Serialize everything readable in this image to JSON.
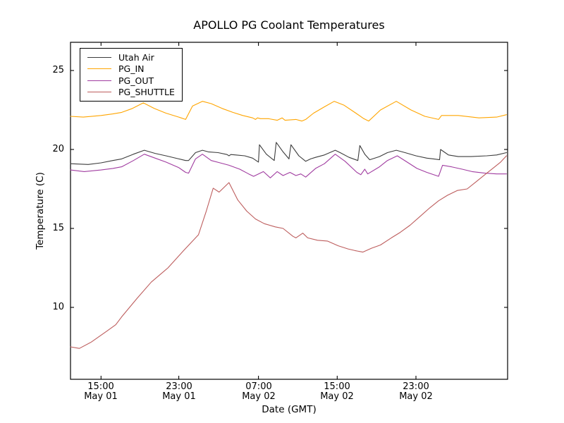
{
  "chart_data": {
    "type": "line",
    "title": "APOLLO PG Coolant Temperatures",
    "xlabel": "Date (GMT)",
    "ylabel": "Temperature (C)",
    "grid": false,
    "legend_position": "upper left",
    "x_axis_note": "hours measured from plot left edge (~May 01 12:00 GMT)",
    "xlim_hours": [
      0,
      44.4
    ],
    "ylim": [
      5.4,
      26.8
    ],
    "yticks": [
      {
        "value": 25,
        "label": "25"
      },
      {
        "value": 20,
        "label": "20"
      },
      {
        "value": 15,
        "label": "15"
      },
      {
        "value": 10,
        "label": "10"
      }
    ],
    "xticks": [
      {
        "hours": 3.1,
        "time": "15:00",
        "date": "May 01"
      },
      {
        "hours": 11.0,
        "time": "23:00",
        "date": "May 01"
      },
      {
        "hours": 19.1,
        "time": "07:00",
        "date": "May 02"
      },
      {
        "hours": 27.1,
        "time": "15:00",
        "date": "May 02"
      },
      {
        "hours": 35.1,
        "time": "23:00",
        "date": "May 02"
      }
    ],
    "series": [
      {
        "name": "Utah Air",
        "color": "#3c3c3c",
        "points": [
          [
            0,
            19.1
          ],
          [
            1.8,
            19.05
          ],
          [
            3.1,
            19.15
          ],
          [
            4.3,
            19.3
          ],
          [
            5.2,
            19.4
          ],
          [
            6.4,
            19.7
          ],
          [
            7.5,
            19.95
          ],
          [
            8.6,
            19.75
          ],
          [
            9.7,
            19.6
          ],
          [
            11.0,
            19.4
          ],
          [
            11.7,
            19.3
          ],
          [
            12.0,
            19.3
          ],
          [
            12.7,
            19.8
          ],
          [
            13.4,
            19.95
          ],
          [
            14.0,
            19.85
          ],
          [
            15.0,
            19.8
          ],
          [
            15.9,
            19.68
          ],
          [
            16.1,
            19.6
          ],
          [
            16.3,
            19.68
          ],
          [
            16.8,
            19.65
          ],
          [
            17.7,
            19.6
          ],
          [
            18.5,
            19.45
          ],
          [
            19.1,
            19.2
          ],
          [
            19.2,
            20.3
          ],
          [
            19.9,
            19.7
          ],
          [
            20.7,
            19.3
          ],
          [
            20.9,
            20.45
          ],
          [
            21.6,
            19.85
          ],
          [
            22.2,
            19.4
          ],
          [
            22.4,
            20.3
          ],
          [
            23.2,
            19.6
          ],
          [
            23.9,
            19.25
          ],
          [
            24.4,
            19.4
          ],
          [
            24.9,
            19.5
          ],
          [
            25.8,
            19.65
          ],
          [
            26.9,
            19.95
          ],
          [
            27.4,
            19.8
          ],
          [
            28.3,
            19.5
          ],
          [
            29.2,
            19.3
          ],
          [
            29.4,
            20.25
          ],
          [
            29.9,
            19.7
          ],
          [
            30.4,
            19.35
          ],
          [
            31.4,
            19.55
          ],
          [
            32.2,
            19.8
          ],
          [
            33.1,
            19.95
          ],
          [
            34.0,
            19.8
          ],
          [
            35.1,
            19.6
          ],
          [
            36.2,
            19.45
          ],
          [
            36.9,
            19.4
          ],
          [
            37.5,
            19.35
          ],
          [
            37.6,
            20.0
          ],
          [
            38.4,
            19.65
          ],
          [
            39.4,
            19.55
          ],
          [
            40.7,
            19.55
          ],
          [
            42.3,
            19.6
          ],
          [
            43.3,
            19.65
          ],
          [
            44.3,
            19.8
          ]
        ]
      },
      {
        "name": "PG_IN",
        "color": "#ffa500",
        "points": [
          [
            0,
            22.1
          ],
          [
            1.3,
            22.05
          ],
          [
            3.1,
            22.15
          ],
          [
            4.3,
            22.25
          ],
          [
            5.2,
            22.35
          ],
          [
            6.3,
            22.6
          ],
          [
            7.4,
            22.95
          ],
          [
            8.5,
            22.6
          ],
          [
            9.7,
            22.3
          ],
          [
            11.0,
            22.05
          ],
          [
            11.7,
            21.9
          ],
          [
            12.4,
            22.75
          ],
          [
            13.4,
            23.05
          ],
          [
            14.3,
            22.9
          ],
          [
            15.4,
            22.6
          ],
          [
            16.5,
            22.35
          ],
          [
            17.5,
            22.15
          ],
          [
            18.5,
            22.0
          ],
          [
            18.8,
            21.9
          ],
          [
            19.0,
            22.0
          ],
          [
            19.3,
            21.95
          ],
          [
            20.1,
            21.95
          ],
          [
            21.0,
            21.85
          ],
          [
            21.5,
            22.0
          ],
          [
            21.8,
            21.85
          ],
          [
            22.9,
            21.9
          ],
          [
            23.5,
            21.8
          ],
          [
            23.9,
            21.9
          ],
          [
            24.7,
            22.3
          ],
          [
            25.8,
            22.7
          ],
          [
            26.8,
            23.05
          ],
          [
            27.8,
            22.8
          ],
          [
            29.0,
            22.3
          ],
          [
            29.8,
            21.95
          ],
          [
            30.3,
            21.8
          ],
          [
            31.5,
            22.5
          ],
          [
            33.1,
            23.05
          ],
          [
            34.6,
            22.5
          ],
          [
            36.0,
            22.1
          ],
          [
            37.4,
            21.9
          ],
          [
            37.7,
            22.15
          ],
          [
            39.4,
            22.15
          ],
          [
            41.5,
            22.0
          ],
          [
            43.3,
            22.05
          ],
          [
            44.3,
            22.2
          ]
        ]
      },
      {
        "name": "PG_OUT",
        "color": "#a03ca0",
        "points": [
          [
            0,
            18.7
          ],
          [
            1.4,
            18.6
          ],
          [
            3.1,
            18.7
          ],
          [
            4.3,
            18.8
          ],
          [
            5.2,
            18.9
          ],
          [
            6.4,
            19.3
          ],
          [
            7.5,
            19.7
          ],
          [
            8.6,
            19.45
          ],
          [
            9.7,
            19.2
          ],
          [
            11.0,
            18.85
          ],
          [
            11.7,
            18.55
          ],
          [
            12.0,
            18.5
          ],
          [
            12.7,
            19.4
          ],
          [
            13.4,
            19.7
          ],
          [
            14.3,
            19.3
          ],
          [
            15.2,
            19.15
          ],
          [
            16.1,
            19.0
          ],
          [
            17.2,
            18.75
          ],
          [
            18.1,
            18.45
          ],
          [
            18.6,
            18.3
          ],
          [
            19.6,
            18.6
          ],
          [
            20.3,
            18.2
          ],
          [
            21.0,
            18.6
          ],
          [
            21.6,
            18.35
          ],
          [
            22.3,
            18.55
          ],
          [
            22.9,
            18.35
          ],
          [
            23.4,
            18.45
          ],
          [
            23.9,
            18.25
          ],
          [
            24.9,
            18.8
          ],
          [
            25.8,
            19.1
          ],
          [
            26.9,
            19.7
          ],
          [
            27.9,
            19.25
          ],
          [
            29.1,
            18.55
          ],
          [
            29.5,
            18.4
          ],
          [
            29.9,
            18.75
          ],
          [
            30.2,
            18.45
          ],
          [
            31.4,
            18.9
          ],
          [
            32.2,
            19.3
          ],
          [
            33.2,
            19.6
          ],
          [
            34.2,
            19.2
          ],
          [
            35.2,
            18.8
          ],
          [
            36.2,
            18.55
          ],
          [
            37.4,
            18.3
          ],
          [
            37.8,
            19.0
          ],
          [
            38.7,
            18.9
          ],
          [
            39.8,
            18.75
          ],
          [
            40.8,
            18.6
          ],
          [
            42.1,
            18.5
          ],
          [
            43.3,
            18.45
          ],
          [
            44.3,
            18.45
          ]
        ]
      },
      {
        "name": "PG_SHUTTLE",
        "color": "#bd5d5d",
        "points": [
          [
            0,
            7.5
          ],
          [
            0.9,
            7.4
          ],
          [
            2.1,
            7.8
          ],
          [
            3.7,
            8.5
          ],
          [
            4.6,
            8.9
          ],
          [
            5.2,
            9.4
          ],
          [
            6.8,
            10.6
          ],
          [
            8.2,
            11.6
          ],
          [
            9.9,
            12.5
          ],
          [
            11.5,
            13.6
          ],
          [
            13.0,
            14.6
          ],
          [
            13.8,
            16.1
          ],
          [
            14.5,
            17.55
          ],
          [
            15.1,
            17.3
          ],
          [
            16.1,
            17.9
          ],
          [
            17.0,
            16.8
          ],
          [
            17.9,
            16.1
          ],
          [
            18.8,
            15.6
          ],
          [
            19.7,
            15.3
          ],
          [
            20.8,
            15.1
          ],
          [
            21.6,
            15.0
          ],
          [
            22.6,
            14.5
          ],
          [
            22.9,
            14.4
          ],
          [
            23.6,
            14.7
          ],
          [
            24.1,
            14.4
          ],
          [
            25.1,
            14.25
          ],
          [
            26.1,
            14.2
          ],
          [
            27.2,
            13.9
          ],
          [
            28.2,
            13.7
          ],
          [
            28.9,
            13.6
          ],
          [
            29.7,
            13.5
          ],
          [
            30.6,
            13.75
          ],
          [
            31.5,
            13.95
          ],
          [
            32.6,
            14.4
          ],
          [
            33.5,
            14.75
          ],
          [
            34.5,
            15.2
          ],
          [
            35.5,
            15.75
          ],
          [
            36.5,
            16.3
          ],
          [
            37.4,
            16.75
          ],
          [
            38.3,
            17.1
          ],
          [
            39.3,
            17.4
          ],
          [
            40.3,
            17.5
          ],
          [
            41.2,
            17.95
          ],
          [
            42.1,
            18.4
          ],
          [
            43.0,
            18.85
          ],
          [
            43.7,
            19.2
          ],
          [
            44.3,
            19.6
          ]
        ]
      }
    ]
  }
}
